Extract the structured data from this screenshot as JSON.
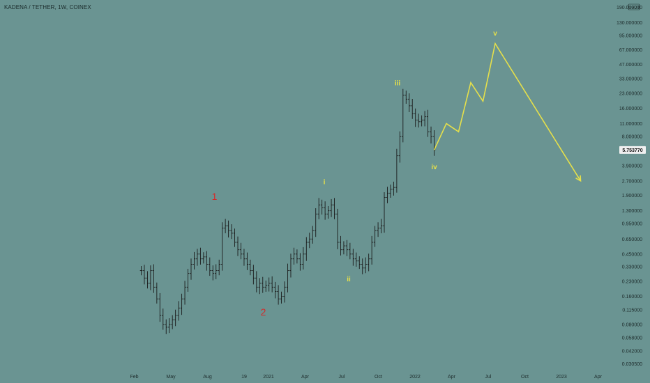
{
  "header": {
    "symbol_title": "KADENA / TETHER, 1W, COINEX"
  },
  "axis": {
    "currency_label": "USDT"
  },
  "chart_data": {
    "type": "ohlc",
    "title": "KADENA / TETHER, 1W, COINEX",
    "y_scale": "log",
    "ylim": [
      0.03,
      190
    ],
    "y_ticks": [
      "190.000000",
      "130.000000",
      "95.000000",
      "67.000000",
      "47.000000",
      "33.000000",
      "23.000000",
      "16.000000",
      "11.000000",
      "8.000000",
      "5.753770",
      "3.900000",
      "2.700000",
      "1.900000",
      "1.300000",
      "0.950000",
      "0.650000",
      "0.450000",
      "0.330000",
      "0.230000",
      "0.160000",
      "0.115000",
      "0.080000",
      "0.058000",
      "0.042000",
      "0.030500"
    ],
    "x_ticks": [
      "Feb",
      "May",
      "Aug",
      "19",
      "2021",
      "Apr",
      "Jul",
      "Oct",
      "2022",
      "Apr",
      "Jul",
      "Oct",
      "2023",
      "Apr"
    ],
    "last_price": "5.753770",
    "price_bars": {
      "x_range": [
        "Feb 2020",
        "Feb 2022"
      ],
      "approx_closes": [
        0.3,
        0.25,
        0.22,
        0.3,
        0.2,
        0.15,
        0.1,
        0.08,
        0.075,
        0.08,
        0.09,
        0.1,
        0.12,
        0.15,
        0.2,
        0.28,
        0.35,
        0.4,
        0.45,
        0.4,
        0.42,
        0.35,
        0.3,
        0.28,
        0.3,
        0.35,
        0.85,
        0.9,
        0.8,
        0.75,
        0.6,
        0.5,
        0.45,
        0.4,
        0.35,
        0.3,
        0.25,
        0.2,
        0.22,
        0.2,
        0.21,
        0.22,
        0.2,
        0.18,
        0.15,
        0.16,
        0.2,
        0.3,
        0.4,
        0.45,
        0.4,
        0.35,
        0.45,
        0.6,
        0.65,
        0.8,
        1.2,
        1.5,
        1.4,
        1.2,
        1.3,
        1.5,
        1.2,
        0.6,
        0.5,
        0.55,
        0.5,
        0.45,
        0.4,
        0.38,
        0.35,
        0.32,
        0.35,
        0.4,
        0.6,
        0.8,
        0.85,
        0.9,
        1.8,
        2.0,
        2.2,
        2.3,
        5.0,
        8.0,
        22.0,
        20.0,
        17.0,
        14.0,
        12.0,
        11.5,
        12.0,
        13.0,
        9.0,
        8.0,
        5.75
      ]
    },
    "projection": {
      "points": [
        {
          "x": "Feb 2022",
          "y": 5.75
        },
        {
          "x": "Mar 2022",
          "y": 11.0
        },
        {
          "x": "Apr 2022",
          "y": 9.0
        },
        {
          "x": "May 2022",
          "y": 30.0
        },
        {
          "x": "Jun 2022",
          "y": 19.0
        },
        {
          "x": "Jul 2022",
          "y": 78.0
        },
        {
          "x": "Feb 2023",
          "y": 2.7
        }
      ],
      "color": "#e6e04a"
    },
    "wave_labels": [
      {
        "text": "1",
        "x": "Aug 2020",
        "y": 1.7,
        "color": "#d42a2a"
      },
      {
        "text": "2",
        "x": "Dec 2020",
        "y": 0.1,
        "color": "#d42a2a"
      },
      {
        "text": "i",
        "x": "May 2021",
        "y": 2.5,
        "color": "#e6e04a"
      },
      {
        "text": "ii",
        "x": "Jul 2021",
        "y": 0.23,
        "color": "#e6e04a"
      },
      {
        "text": "iii",
        "x": "Nov 2021",
        "y": 28.0,
        "color": "#e6e04a"
      },
      {
        "text": "iv",
        "x": "Feb 2022",
        "y": 3.6,
        "color": "#e6e04a"
      },
      {
        "text": "v",
        "x": "Jul 2022",
        "y": 95.0,
        "color": "#e6e04a"
      }
    ],
    "colors": {
      "background": "#6a9492",
      "bars": "#1a1a1a",
      "projection": "#e6e04a",
      "impulse_labels": "#d42a2a",
      "price_badge": "#f0f0f0"
    }
  }
}
